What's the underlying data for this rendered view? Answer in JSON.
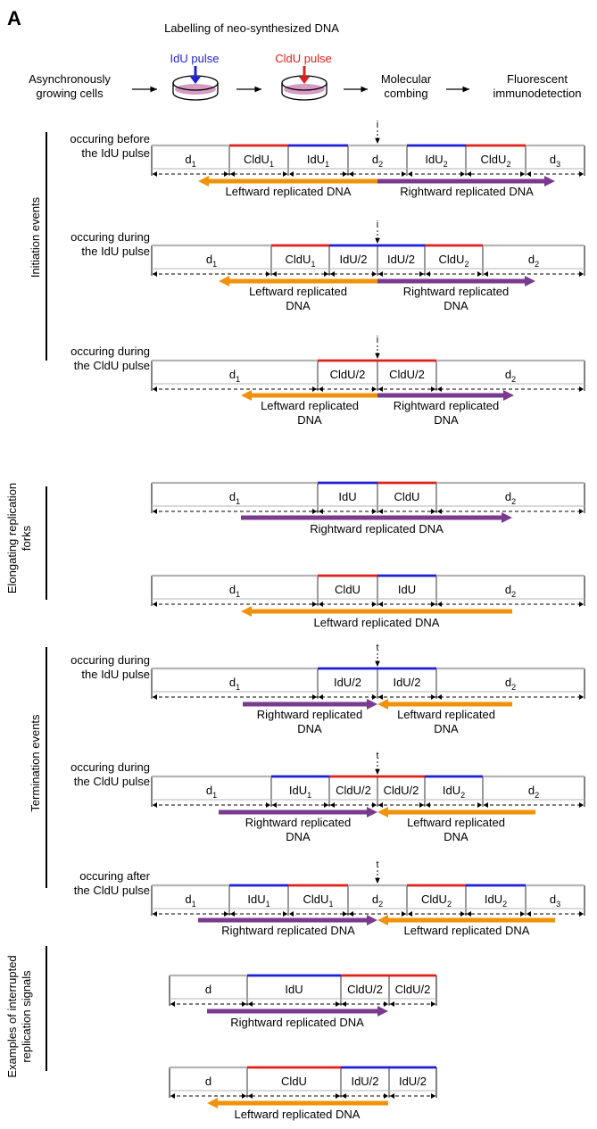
{
  "panel_letter": "A",
  "workflow": {
    "title": "Labelling of neo-synthesized DNA",
    "idu_pulse": "IdU pulse",
    "cldu_pulse": "CldU pulse",
    "step_cells_1": "Asynchronously",
    "step_cells_2": "growing cells",
    "step_combing_1": "Molecular",
    "step_combing_2": "combing",
    "step_detect_1": "Fluorescent",
    "step_detect_2": "immunodetection"
  },
  "colors": {
    "idu": "#1f1fd6",
    "cldu": "#e0201c",
    "grey_fiber": "#b4b4b4",
    "leftward": "#f0920a",
    "rightward": "#7a3b8f",
    "dish": "#d79bc4"
  },
  "groups": {
    "initiation": "Initiation events",
    "elongating_1": "Elongating replication",
    "elongating_2": "forks",
    "termination": "Termination events",
    "interrupted_1": "Examples of interrupted",
    "interrupted_2": "replication signals"
  },
  "markers": {
    "i": "i",
    "t": "t"
  },
  "rows": {
    "r1": {
      "cap1": "occuring before",
      "cap2": "the IdU pulse",
      "seg": [
        "d",
        "CldU",
        "IdU",
        "d",
        "IdU",
        "CldU",
        "d"
      ],
      "sub": [
        "1",
        "1",
        "1",
        "2",
        "2",
        "2",
        "3"
      ],
      "left": "Leftward replicated DNA",
      "right": "Rightward replicated DNA"
    },
    "r2": {
      "cap1": "occuring during",
      "cap2": "the IdU pulse",
      "seg": [
        "d",
        "CldU",
        "IdU/2",
        "IdU/2",
        "CldU",
        "d"
      ],
      "sub": [
        "1",
        "1",
        "",
        "",
        "2",
        "2"
      ],
      "left1": "Leftward replicated",
      "left2": "DNA",
      "right1": "Rightward replicated",
      "right2": "DNA"
    },
    "r3": {
      "cap1": "occuring during",
      "cap2": "the CldU pulse",
      "seg": [
        "d",
        "CldU/2",
        "CldU/2",
        "d"
      ],
      "sub": [
        "1",
        "",
        "",
        "2"
      ],
      "left1": "Leftward replicated",
      "left2": "DNA",
      "right1": "Rightward replicated",
      "right2": "DNA"
    },
    "r4": {
      "seg": [
        "d",
        "IdU",
        "CldU",
        "d"
      ],
      "sub": [
        "1",
        "",
        "",
        "2"
      ],
      "right": "Rightward replicated DNA"
    },
    "r5": {
      "seg": [
        "d",
        "CldU",
        "IdU",
        "d"
      ],
      "sub": [
        "1",
        "",
        "",
        "2"
      ],
      "left": "Leftward replicated DNA"
    },
    "r6": {
      "cap1": "occuring during",
      "cap2": "the IdU pulse",
      "seg": [
        "d",
        "IdU/2",
        "IdU/2",
        "d"
      ],
      "sub": [
        "1",
        "",
        "",
        "2"
      ],
      "right1": "Rightward replicated",
      "right2": "DNA",
      "left1": "Leftward replicated",
      "left2": "DNA"
    },
    "r7": {
      "cap1": "occuring during",
      "cap2": "the CldU pulse",
      "seg": [
        "d",
        "IdU",
        "CldU/2",
        "CldU/2",
        "IdU",
        "d"
      ],
      "sub": [
        "1",
        "1",
        "",
        "",
        "2",
        "2"
      ],
      "right1": "Rightward replicated",
      "right2": "DNA",
      "left1": "Leftward replicated",
      "left2": "DNA"
    },
    "r8": {
      "cap1": "occuring after",
      "cap2": "the CldU pulse",
      "seg": [
        "d",
        "IdU",
        "CldU",
        "d",
        "CldU",
        "IdU",
        "d"
      ],
      "sub": [
        "1",
        "1",
        "1",
        "2",
        "2",
        "2",
        "3"
      ],
      "right": "Rightward replicated DNA",
      "left": "Leftward replicated DNA"
    },
    "r9": {
      "seg": [
        "d",
        "IdU",
        "CldU/2",
        "CldU/2"
      ],
      "right": "Rightward replicated DNA"
    },
    "r10": {
      "seg": [
        "d",
        "CldU",
        "IdU/2",
        "IdU/2"
      ],
      "left": "Leftward replicated DNA"
    }
  }
}
